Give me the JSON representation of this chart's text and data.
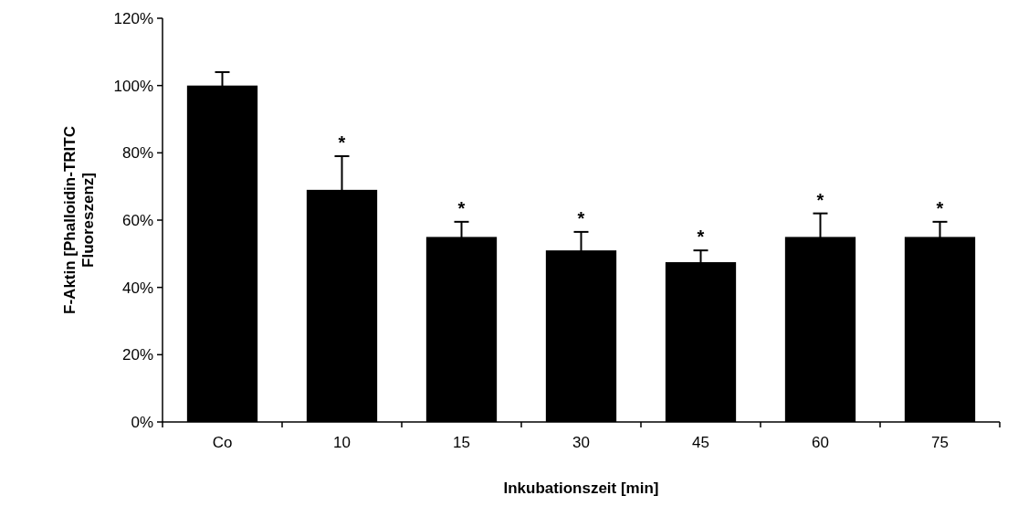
{
  "chart_data": {
    "type": "bar",
    "xlabel": "Inkubationszeit [min]",
    "ylabel": "F-Aktin [Phalloidin-TRITC\nFluoreszenz]",
    "categories": [
      "Co",
      "10",
      "15",
      "30",
      "45",
      "60",
      "75"
    ],
    "values": [
      100,
      69,
      55,
      51,
      47.5,
      55,
      55
    ],
    "errors": [
      4,
      10,
      4.5,
      5.5,
      3.5,
      7,
      4.5
    ],
    "color": "#000000",
    "ylim": [
      0,
      120
    ],
    "yticks": [
      {
        "value": 0,
        "label": "0%"
      },
      {
        "value": 20,
        "label": "20%"
      },
      {
        "value": 40,
        "label": "40%"
      },
      {
        "value": 60,
        "label": "60%"
      },
      {
        "value": 80,
        "label": "80%"
      },
      {
        "value": 100,
        "label": "100%"
      },
      {
        "value": 120,
        "label": "120%"
      }
    ],
    "grid": false,
    "value_labels": [
      null,
      "*",
      "*",
      "*",
      "*",
      "*",
      "*"
    ]
  }
}
